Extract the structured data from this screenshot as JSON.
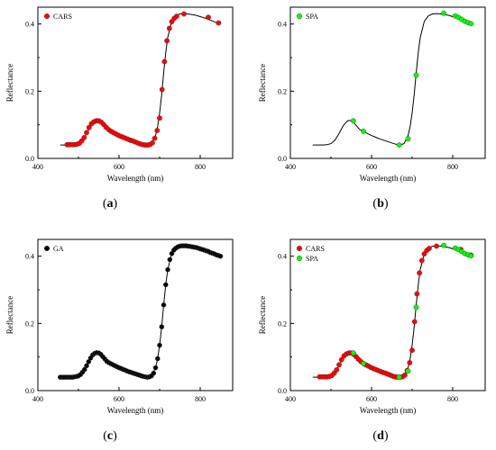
{
  "chart_data": [
    {
      "id": "a",
      "type": "line",
      "caption": "a",
      "xlabel": "Wavelength (nm)",
      "ylabel": "Reflectance",
      "xlim": [
        400,
        880
      ],
      "ylim": [
        0,
        0.45
      ],
      "xticks": [
        "400",
        "600",
        "800"
      ],
      "yticks": [
        "0.0",
        "0.2",
        "0.4"
      ],
      "legend": {
        "position": "top-left",
        "entries": [
          {
            "label": "CARS",
            "color": "#ff0000"
          }
        ]
      },
      "series": [
        {
          "name": "CARS",
          "kind": "markers",
          "color": "#ff0000",
          "x": [
            472,
            478,
            484,
            490,
            496,
            502,
            508,
            514,
            520,
            526,
            532,
            538,
            544,
            550,
            556,
            562,
            568,
            574,
            580,
            586,
            592,
            598,
            604,
            610,
            616,
            622,
            628,
            634,
            640,
            646,
            652,
            658,
            664,
            670,
            676,
            682,
            688,
            694,
            700,
            706,
            712,
            718,
            724,
            730,
            736,
            742,
            760,
            820,
            845
          ],
          "y": [
            0.041,
            0.041,
            0.041,
            0.041,
            0.042,
            0.045,
            0.052,
            0.062,
            0.077,
            0.092,
            0.103,
            0.109,
            0.112,
            0.112,
            0.108,
            0.101,
            0.093,
            0.086,
            0.081,
            0.077,
            0.073,
            0.069,
            0.066,
            0.063,
            0.06,
            0.057,
            0.054,
            0.052,
            0.049,
            0.046,
            0.043,
            0.041,
            0.04,
            0.04,
            0.041,
            0.046,
            0.06,
            0.083,
            0.12,
            0.205,
            0.288,
            0.35,
            0.387,
            0.407,
            0.417,
            0.423,
            0.43,
            0.42,
            0.403
          ]
        }
      ]
    },
    {
      "id": "b",
      "type": "line",
      "caption": "b",
      "xlabel": "Wavelength (nm)",
      "ylabel": "Reflectance",
      "xlim": [
        400,
        880
      ],
      "ylim": [
        0,
        0.45
      ],
      "xticks": [
        "400",
        "600",
        "800"
      ],
      "yticks": [
        "0.0",
        "0.2",
        "0.4"
      ],
      "legend": {
        "position": "top-left",
        "entries": [
          {
            "label": "SPA",
            "color": "#00ff00"
          }
        ]
      },
      "series": [
        {
          "name": "SPA",
          "kind": "markers",
          "color": "#00ff00",
          "x": [
            555,
            580,
            668,
            690,
            710,
            778,
            806,
            814,
            822,
            830,
            838,
            845
          ],
          "y": [
            0.112,
            0.081,
            0.04,
            0.058,
            0.248,
            0.432,
            0.424,
            0.42,
            0.414,
            0.408,
            0.404,
            0.401
          ]
        }
      ]
    },
    {
      "id": "c",
      "type": "line",
      "caption": "c",
      "xlabel": "Wavelength (nm)",
      "ylabel": "Reflectance",
      "xlim": [
        400,
        880
      ],
      "ylim": [
        0,
        0.45
      ],
      "xticks": [
        "400",
        "600",
        "800"
      ],
      "yticks": [
        "0.0",
        "0.2",
        "0.4"
      ],
      "legend": {
        "position": "top-left",
        "entries": [
          {
            "label": "GA",
            "color": "#000000"
          }
        ]
      },
      "series": [
        {
          "name": "GA",
          "kind": "markers",
          "color": "#000000",
          "x": [
            455,
            460,
            465,
            470,
            475,
            480,
            485,
            490,
            495,
            500,
            505,
            510,
            515,
            520,
            525,
            530,
            535,
            540,
            545,
            550,
            555,
            560,
            565,
            570,
            575,
            580,
            585,
            590,
            595,
            600,
            605,
            610,
            615,
            620,
            625,
            630,
            635,
            640,
            645,
            650,
            655,
            660,
            665,
            670,
            675,
            680,
            685,
            690,
            695,
            700,
            705,
            710,
            715,
            720,
            725,
            730,
            735,
            740,
            745,
            750,
            755,
            760,
            765,
            770,
            775,
            780,
            785,
            790,
            795,
            800,
            805,
            810,
            815,
            820,
            825,
            830,
            835,
            840,
            845,
            850
          ],
          "y": [
            0.04,
            0.04,
            0.04,
            0.04,
            0.04,
            0.04,
            0.04,
            0.041,
            0.042,
            0.044,
            0.048,
            0.055,
            0.063,
            0.074,
            0.086,
            0.097,
            0.106,
            0.111,
            0.113,
            0.112,
            0.108,
            0.101,
            0.094,
            0.087,
            0.083,
            0.08,
            0.077,
            0.074,
            0.071,
            0.068,
            0.066,
            0.063,
            0.061,
            0.058,
            0.056,
            0.054,
            0.052,
            0.05,
            0.048,
            0.046,
            0.044,
            0.042,
            0.041,
            0.04,
            0.041,
            0.044,
            0.052,
            0.068,
            0.095,
            0.135,
            0.19,
            0.255,
            0.315,
            0.36,
            0.39,
            0.408,
            0.418,
            0.424,
            0.428,
            0.43,
            0.431,
            0.431,
            0.431,
            0.43,
            0.429,
            0.428,
            0.427,
            0.426,
            0.424,
            0.422,
            0.42,
            0.418,
            0.416,
            0.414,
            0.411,
            0.409,
            0.407,
            0.404,
            0.402,
            0.4
          ]
        }
      ]
    },
    {
      "id": "d",
      "type": "line",
      "caption": "d",
      "xlabel": "Wavelength (nm)",
      "ylabel": "Reflectance",
      "xlim": [
        400,
        880
      ],
      "ylim": [
        0,
        0.45
      ],
      "xticks": [
        "400",
        "600",
        "800"
      ],
      "yticks": [
        "0.0",
        "0.2",
        "0.4"
      ],
      "legend": {
        "position": "top-left",
        "entries": [
          {
            "label": "CARS",
            "color": "#ff0000"
          },
          {
            "label": "SPA",
            "color": "#00ff00"
          }
        ]
      },
      "series": [
        {
          "name": "CARS",
          "kind": "markers",
          "color": "#ff0000",
          "x": [
            472,
            478,
            484,
            490,
            496,
            502,
            508,
            514,
            520,
            526,
            532,
            538,
            544,
            550,
            556,
            562,
            568,
            574,
            580,
            586,
            592,
            598,
            604,
            610,
            616,
            622,
            628,
            634,
            640,
            646,
            652,
            658,
            664,
            670,
            676,
            682,
            688,
            694,
            700,
            706,
            712,
            718,
            724,
            730,
            736,
            742,
            760,
            820,
            845
          ],
          "y": [
            0.041,
            0.041,
            0.041,
            0.041,
            0.042,
            0.045,
            0.052,
            0.062,
            0.077,
            0.092,
            0.103,
            0.109,
            0.112,
            0.112,
            0.108,
            0.101,
            0.093,
            0.086,
            0.081,
            0.077,
            0.073,
            0.069,
            0.066,
            0.063,
            0.06,
            0.057,
            0.054,
            0.052,
            0.049,
            0.046,
            0.043,
            0.041,
            0.04,
            0.04,
            0.041,
            0.046,
            0.06,
            0.083,
            0.12,
            0.205,
            0.288,
            0.35,
            0.387,
            0.407,
            0.417,
            0.423,
            0.43,
            0.42,
            0.403
          ]
        },
        {
          "name": "SPA",
          "kind": "markers",
          "color": "#00ff00",
          "x": [
            555,
            580,
            668,
            690,
            710,
            778,
            806,
            814,
            822,
            830,
            838,
            845
          ],
          "y": [
            0.112,
            0.081,
            0.04,
            0.058,
            0.248,
            0.432,
            0.424,
            0.42,
            0.414,
            0.408,
            0.404,
            0.401
          ]
        }
      ]
    }
  ],
  "spectrum": {
    "x": [
      455,
      470,
      480,
      490,
      500,
      510,
      520,
      530,
      540,
      545,
      550,
      555,
      560,
      570,
      580,
      590,
      600,
      610,
      620,
      630,
      640,
      650,
      660,
      670,
      680,
      690,
      695,
      700,
      705,
      710,
      715,
      720,
      730,
      740,
      750,
      760,
      770,
      780,
      790,
      800,
      810,
      820,
      830,
      840,
      850
    ],
    "y": [
      0.04,
      0.04,
      0.04,
      0.041,
      0.044,
      0.055,
      0.074,
      0.097,
      0.111,
      0.113,
      0.112,
      0.108,
      0.101,
      0.087,
      0.08,
      0.074,
      0.068,
      0.063,
      0.058,
      0.054,
      0.05,
      0.046,
      0.042,
      0.04,
      0.044,
      0.068,
      0.095,
      0.135,
      0.19,
      0.255,
      0.315,
      0.36,
      0.408,
      0.424,
      0.43,
      0.431,
      0.43,
      0.428,
      0.426,
      0.422,
      0.418,
      0.414,
      0.409,
      0.404,
      0.4
    ]
  }
}
